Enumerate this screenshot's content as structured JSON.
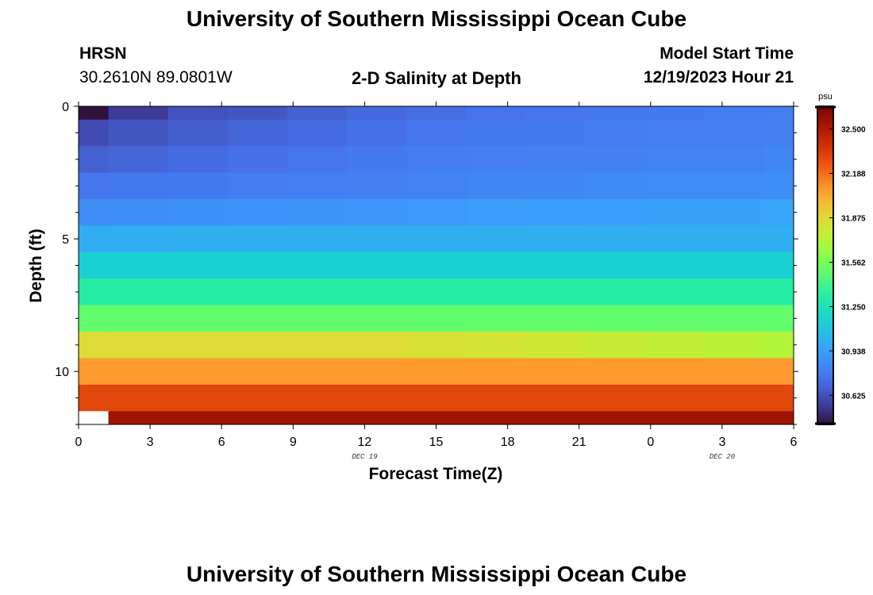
{
  "header": {
    "title": "University of Southern Mississippi Ocean Cube",
    "station": "HRSN",
    "coords": "30.2610N  89.0801W",
    "subtitle": "2-D Salinity at Depth",
    "model_start_label": "Model Start Time",
    "model_start_value": "12/19/2023 Hour 21"
  },
  "footer": {
    "title": "University of Southern Mississippi Ocean Cube"
  },
  "chart_data": {
    "type": "heatmap",
    "title": "2-D Salinity at Depth",
    "xlabel": "Forecast Time(Z)",
    "ylabel": "Depth (ft)",
    "x_ticks": [
      "0",
      "3",
      "6",
      "9",
      "12",
      "15",
      "18",
      "21",
      "0",
      "3",
      "6"
    ],
    "x_tick_hours": [
      0,
      3,
      6,
      9,
      12,
      15,
      18,
      21,
      24,
      27,
      30
    ],
    "date_labels": [
      {
        "label": "DEC 19",
        "at_hour": 12
      },
      {
        "label": "DEC 20",
        "at_hour": 27
      }
    ],
    "y_ticks": [
      "0",
      "5",
      "10"
    ],
    "y_tick_values": [
      0,
      5,
      10
    ],
    "xlim_hours": [
      0,
      30
    ],
    "ylim_ft": [
      0,
      12
    ],
    "colorbar": {
      "unit": "psu",
      "ticks": [
        "32.500",
        "32.188",
        "31.875",
        "31.562",
        "31.250",
        "30.938",
        "30.625"
      ],
      "tick_values": [
        32.5,
        32.188,
        31.875,
        31.562,
        31.25,
        30.938,
        30.625
      ],
      "range": [
        30.42,
        32.66
      ]
    },
    "time_edges_hours": [
      0,
      1.25,
      3.75,
      6.25,
      8.75,
      11.25,
      13.75,
      16.25,
      18.75,
      21.25,
      23.75,
      26.25,
      28.75,
      30
    ],
    "depth_edges_ft": [
      0,
      0.5,
      1.5,
      2.5,
      3.5,
      4.5,
      5.5,
      6.5,
      7.5,
      8.5,
      9.5,
      10.5,
      11.5,
      12
    ],
    "salinity_psu": [
      [
        30.42,
        30.55,
        30.62,
        30.64,
        30.68,
        30.71,
        30.73,
        30.75,
        30.76,
        30.77,
        30.78,
        30.79,
        30.8
      ],
      [
        30.6,
        30.64,
        30.67,
        30.7,
        30.72,
        30.74,
        30.76,
        30.77,
        30.78,
        30.79,
        30.8,
        30.8,
        30.81
      ],
      [
        30.68,
        30.7,
        30.72,
        30.74,
        30.76,
        30.78,
        30.79,
        30.8,
        30.81,
        30.81,
        30.82,
        30.82,
        30.83
      ],
      [
        30.76,
        30.77,
        30.78,
        30.79,
        30.8,
        30.81,
        30.82,
        30.83,
        30.84,
        30.85,
        30.86,
        30.86,
        30.87
      ],
      [
        30.86,
        30.87,
        30.88,
        30.89,
        30.9,
        30.91,
        30.92,
        30.93,
        30.94,
        30.95,
        30.96,
        30.96,
        30.97
      ],
      [
        31.0,
        31.0,
        31.01,
        31.01,
        31.01,
        31.01,
        31.01,
        31.01,
        31.01,
        31.01,
        31.01,
        31.01,
        31.01
      ],
      [
        31.14,
        31.14,
        31.14,
        31.14,
        31.14,
        31.14,
        31.14,
        31.14,
        31.14,
        31.14,
        31.14,
        31.14,
        31.14
      ],
      [
        31.32,
        31.32,
        31.32,
        31.32,
        31.32,
        31.32,
        31.32,
        31.32,
        31.32,
        31.32,
        31.32,
        31.32,
        31.32
      ],
      [
        31.5,
        31.5,
        31.5,
        31.5,
        31.5,
        31.5,
        31.5,
        31.5,
        31.5,
        31.5,
        31.5,
        31.5,
        31.5
      ],
      [
        31.86,
        31.86,
        31.86,
        31.86,
        31.86,
        31.86,
        31.84,
        31.82,
        31.8,
        31.78,
        31.76,
        31.74,
        31.72
      ],
      [
        32.08,
        32.08,
        32.08,
        32.08,
        32.08,
        32.08,
        32.08,
        32.08,
        32.08,
        32.08,
        32.08,
        32.08,
        32.08
      ],
      [
        32.3,
        32.3,
        32.3,
        32.3,
        32.3,
        32.3,
        32.3,
        32.3,
        32.3,
        32.3,
        32.3,
        32.3,
        32.3
      ],
      [
        null,
        32.55,
        32.55,
        32.55,
        32.55,
        32.55,
        32.55,
        32.55,
        32.55,
        32.55,
        32.55,
        32.55,
        32.55
      ]
    ]
  }
}
